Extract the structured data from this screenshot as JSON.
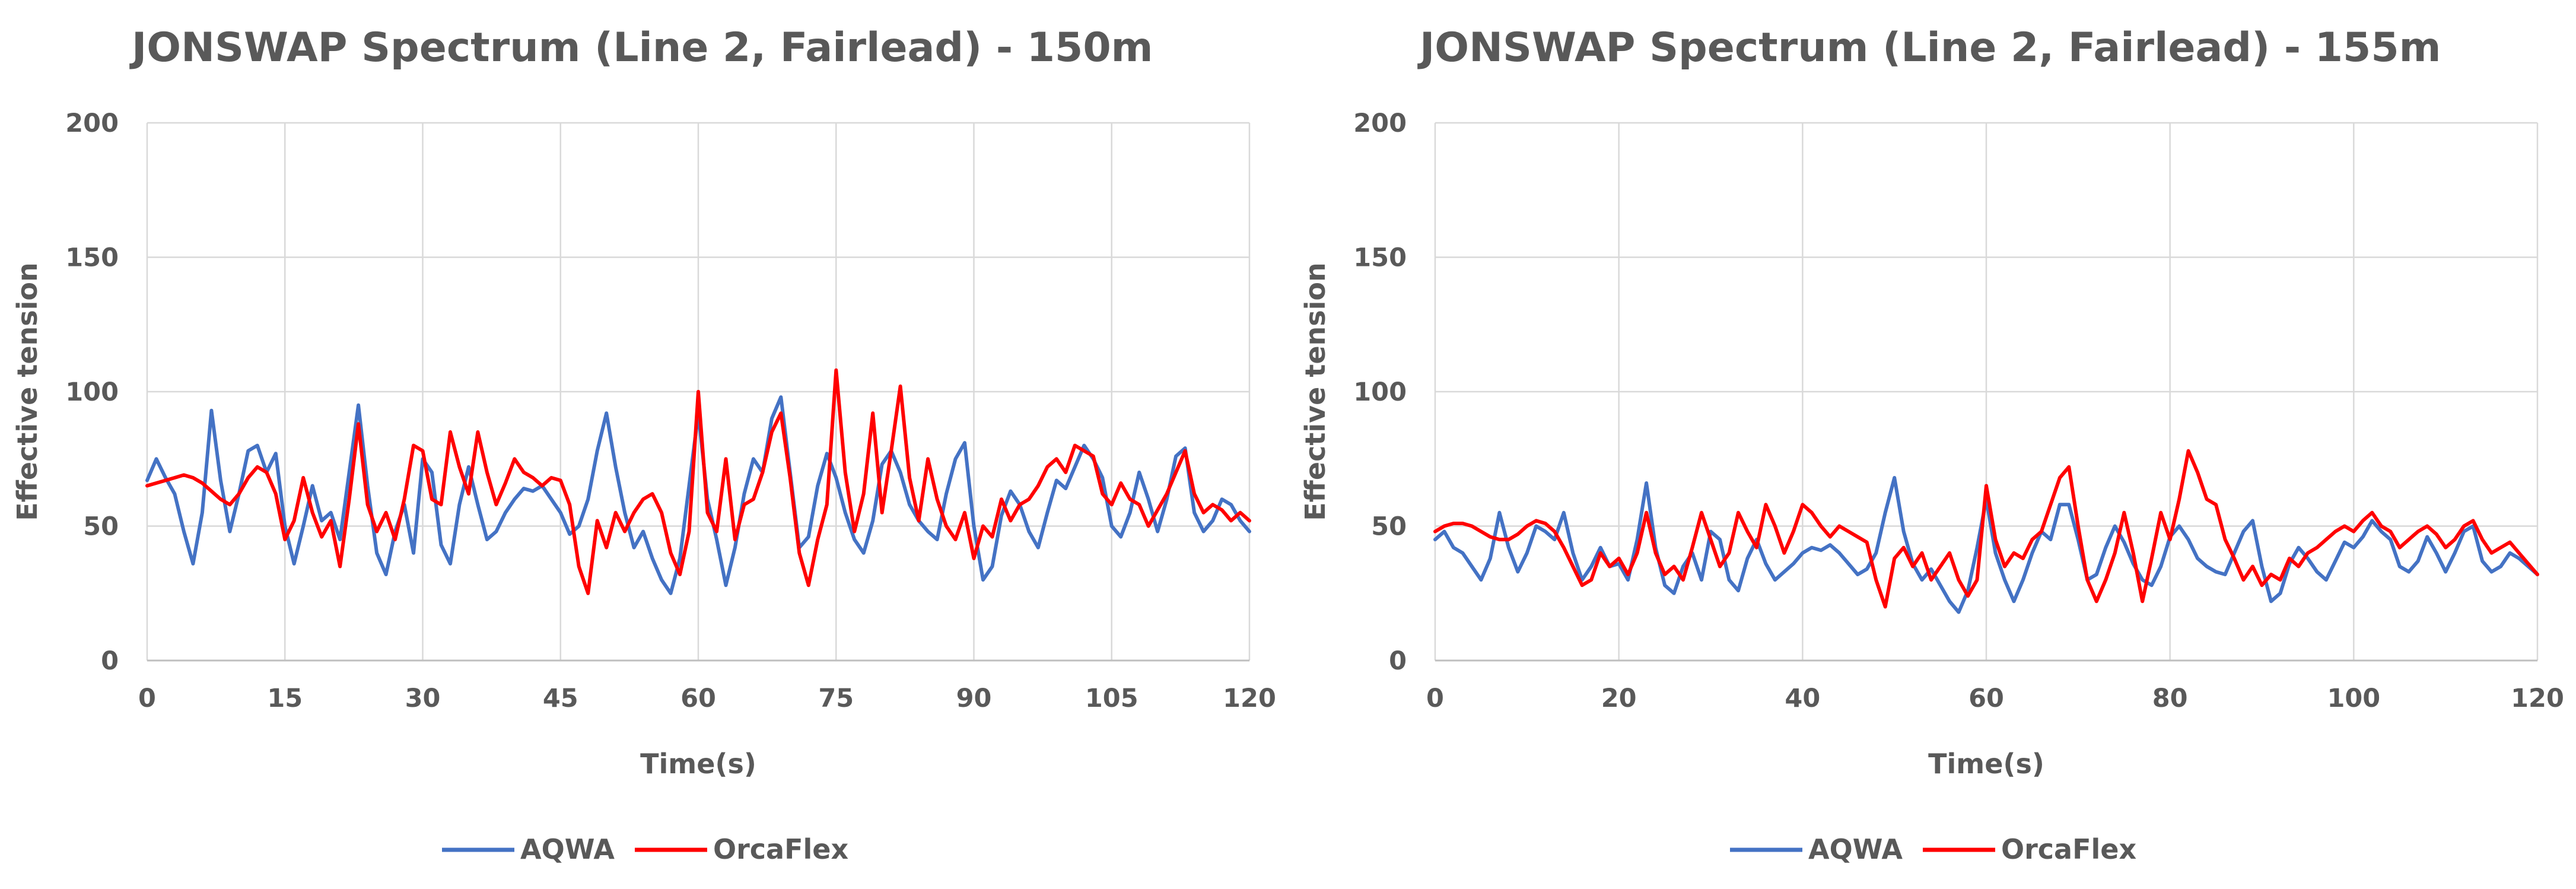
{
  "colors": {
    "aqwa": "#4472C4",
    "orcaflex": "#FF0000"
  },
  "chart_data": [
    {
      "type": "line",
      "title": "JONSWAP Spectrum (Line 2, Fairlead) - 150m",
      "xlabel": "Time(s)",
      "ylabel": "Effective tension",
      "xlim": [
        0,
        120
      ],
      "ylim": [
        0,
        200
      ],
      "xticks": [
        0,
        15,
        30,
        45,
        60,
        75,
        90,
        105,
        120
      ],
      "xtick_labels": [
        "0",
        "15",
        "30",
        "45",
        "60",
        "75",
        "90",
        "105",
        "120"
      ],
      "yticks": [
        0,
        50,
        100,
        150,
        200
      ],
      "ytick_labels": [
        "0",
        "50",
        "100",
        "150",
        "200"
      ],
      "grid": true,
      "legend_position": "bottom",
      "series": [
        {
          "name": "AQWA",
          "x": [
            0,
            1,
            2,
            3,
            4,
            5,
            6,
            7,
            8,
            9,
            10,
            11,
            12,
            13,
            14,
            15,
            16,
            17,
            18,
            19,
            20,
            21,
            22,
            23,
            24,
            25,
            26,
            27,
            28,
            29,
            30,
            31,
            32,
            33,
            34,
            35,
            36,
            37,
            38,
            39,
            40,
            41,
            42,
            43,
            44,
            45,
            46,
            47,
            48,
            49,
            50,
            51,
            52,
            53,
            54,
            55,
            56,
            57,
            58,
            59,
            60,
            61,
            62,
            63,
            64,
            65,
            66,
            67,
            68,
            69,
            70,
            71,
            72,
            73,
            74,
            75,
            76,
            77,
            78,
            79,
            80,
            81,
            82,
            83,
            84,
            85,
            86,
            87,
            88,
            89,
            90,
            91,
            92,
            93,
            94,
            95,
            96,
            97,
            98,
            99,
            100,
            101,
            102,
            103,
            104,
            105,
            106,
            107,
            108,
            109,
            110,
            111,
            112,
            113,
            114,
            115,
            116,
            117,
            118,
            119,
            120
          ],
          "values": [
            67,
            75,
            68,
            62,
            48,
            36,
            55,
            93,
            67,
            48,
            62,
            78,
            80,
            70,
            77,
            50,
            36,
            50,
            65,
            52,
            55,
            45,
            70,
            95,
            65,
            40,
            32,
            48,
            58,
            40,
            75,
            70,
            43,
            36,
            58,
            72,
            58,
            45,
            48,
            55,
            60,
            64,
            63,
            65,
            60,
            55,
            47,
            50,
            60,
            78,
            92,
            72,
            55,
            42,
            48,
            38,
            30,
            25,
            38,
            65,
            92,
            60,
            45,
            28,
            42,
            62,
            75,
            70,
            90,
            98,
            70,
            42,
            46,
            65,
            77,
            68,
            55,
            45,
            40,
            52,
            73,
            78,
            70,
            58,
            52,
            48,
            45,
            62,
            75,
            81,
            50,
            30,
            35,
            54,
            63,
            58,
            48,
            42,
            55,
            67,
            64,
            72,
            80,
            75,
            68,
            50,
            46,
            55,
            70,
            60,
            48,
            60,
            76,
            79,
            55,
            48,
            52,
            60,
            58,
            52,
            48
          ]
        },
        {
          "name": "OrcaFlex",
          "x": [
            0,
            1,
            2,
            3,
            4,
            5,
            6,
            7,
            8,
            9,
            10,
            11,
            12,
            13,
            14,
            15,
            16,
            17,
            18,
            19,
            20,
            21,
            22,
            23,
            24,
            25,
            26,
            27,
            28,
            29,
            30,
            31,
            32,
            33,
            34,
            35,
            36,
            37,
            38,
            39,
            40,
            41,
            42,
            43,
            44,
            45,
            46,
            47,
            48,
            49,
            50,
            51,
            52,
            53,
            54,
            55,
            56,
            57,
            58,
            59,
            60,
            61,
            62,
            63,
            64,
            65,
            66,
            67,
            68,
            69,
            70,
            71,
            72,
            73,
            74,
            75,
            76,
            77,
            78,
            79,
            80,
            81,
            82,
            83,
            84,
            85,
            86,
            87,
            88,
            89,
            90,
            91,
            92,
            93,
            94,
            95,
            96,
            97,
            98,
            99,
            100,
            101,
            102,
            103,
            104,
            105,
            106,
            107,
            108,
            109,
            110,
            111,
            112,
            113,
            114,
            115,
            116,
            117,
            118,
            119,
            120
          ],
          "values": [
            65,
            66,
            67,
            68,
            69,
            68,
            66,
            63,
            60,
            58,
            62,
            68,
            72,
            70,
            62,
            45,
            52,
            68,
            55,
            46,
            52,
            35,
            60,
            88,
            58,
            48,
            55,
            45,
            60,
            80,
            78,
            60,
            58,
            85,
            72,
            62,
            85,
            70,
            58,
            66,
            75,
            70,
            68,
            65,
            68,
            67,
            58,
            35,
            25,
            52,
            42,
            55,
            48,
            55,
            60,
            62,
            55,
            40,
            32,
            48,
            100,
            55,
            48,
            75,
            45,
            58,
            60,
            70,
            85,
            92,
            68,
            40,
            28,
            45,
            58,
            108,
            70,
            48,
            62,
            92,
            55,
            78,
            102,
            68,
            52,
            75,
            60,
            50,
            45,
            55,
            38,
            50,
            46,
            60,
            52,
            58,
            60,
            65,
            72,
            75,
            70,
            80,
            78,
            76,
            62,
            58,
            66,
            60,
            58,
            50,
            56,
            62,
            70,
            78,
            62,
            55,
            58,
            56,
            52,
            55,
            52
          ]
        }
      ]
    },
    {
      "type": "line",
      "title": "JONSWAP Spectrum (Line 2, Fairlead) - 155m",
      "xlabel": "Time(s)",
      "ylabel": "Effective tension",
      "xlim": [
        0,
        120
      ],
      "ylim": [
        0,
        200
      ],
      "xticks": [
        0,
        20,
        40,
        60,
        80,
        100,
        120
      ],
      "xtick_labels": [
        "0",
        "20",
        "40",
        "60",
        "80",
        "100",
        "120"
      ],
      "yticks": [
        0,
        50,
        100,
        150,
        200
      ],
      "ytick_labels": [
        "0",
        "50",
        "100",
        "150",
        "200"
      ],
      "grid": true,
      "legend_position": "bottom",
      "series": [
        {
          "name": "AQWA",
          "x": [
            0,
            1,
            2,
            3,
            4,
            5,
            6,
            7,
            8,
            9,
            10,
            11,
            12,
            13,
            14,
            15,
            16,
            17,
            18,
            19,
            20,
            21,
            22,
            23,
            24,
            25,
            26,
            27,
            28,
            29,
            30,
            31,
            32,
            33,
            34,
            35,
            36,
            37,
            38,
            39,
            40,
            41,
            42,
            43,
            44,
            45,
            46,
            47,
            48,
            49,
            50,
            51,
            52,
            53,
            54,
            55,
            56,
            57,
            58,
            59,
            60,
            61,
            62,
            63,
            64,
            65,
            66,
            67,
            68,
            69,
            70,
            71,
            72,
            73,
            74,
            75,
            76,
            77,
            78,
            79,
            80,
            81,
            82,
            83,
            84,
            85,
            86,
            87,
            88,
            89,
            90,
            91,
            92,
            93,
            94,
            95,
            96,
            97,
            98,
            99,
            100,
            101,
            102,
            103,
            104,
            105,
            106,
            107,
            108,
            109,
            110,
            111,
            112,
            113,
            114,
            115,
            116,
            117,
            118,
            119,
            120
          ],
          "values": [
            45,
            48,
            42,
            40,
            35,
            30,
            38,
            55,
            42,
            33,
            40,
            50,
            48,
            45,
            55,
            40,
            30,
            35,
            42,
            35,
            36,
            30,
            45,
            66,
            42,
            28,
            25,
            35,
            40,
            30,
            48,
            45,
            30,
            26,
            38,
            45,
            36,
            30,
            33,
            36,
            40,
            42,
            41,
            43,
            40,
            36,
            32,
            34,
            40,
            55,
            68,
            48,
            36,
            30,
            34,
            28,
            22,
            18,
            26,
            42,
            60,
            40,
            30,
            22,
            30,
            40,
            48,
            45,
            58,
            58,
            45,
            30,
            32,
            42,
            50,
            44,
            36,
            30,
            28,
            35,
            46,
            50,
            45,
            38,
            35,
            33,
            32,
            40,
            48,
            52,
            35,
            22,
            25,
            36,
            42,
            38,
            33,
            30,
            37,
            44,
            42,
            46,
            52,
            48,
            45,
            35,
            33,
            37,
            46,
            40,
            33,
            40,
            48,
            50,
            37,
            33,
            35,
            40,
            38,
            35,
            32
          ]
        },
        {
          "name": "OrcaFlex",
          "x": [
            0,
            1,
            2,
            3,
            4,
            5,
            6,
            7,
            8,
            9,
            10,
            11,
            12,
            13,
            14,
            15,
            16,
            17,
            18,
            19,
            20,
            21,
            22,
            23,
            24,
            25,
            26,
            27,
            28,
            29,
            30,
            31,
            32,
            33,
            34,
            35,
            36,
            37,
            38,
            39,
            40,
            41,
            42,
            43,
            44,
            45,
            46,
            47,
            48,
            49,
            50,
            51,
            52,
            53,
            54,
            55,
            56,
            57,
            58,
            59,
            60,
            61,
            62,
            63,
            64,
            65,
            66,
            67,
            68,
            69,
            70,
            71,
            72,
            73,
            74,
            75,
            76,
            77,
            78,
            79,
            80,
            81,
            82,
            83,
            84,
            85,
            86,
            87,
            88,
            89,
            90,
            91,
            92,
            93,
            94,
            95,
            96,
            97,
            98,
            99,
            100,
            101,
            102,
            103,
            104,
            105,
            106,
            107,
            108,
            109,
            110,
            111,
            112,
            113,
            114,
            115,
            116,
            117,
            118,
            119,
            120
          ],
          "values": [
            48,
            50,
            51,
            51,
            50,
            48,
            46,
            45,
            45,
            47,
            50,
            52,
            51,
            48,
            42,
            35,
            28,
            30,
            40,
            35,
            38,
            32,
            40,
            55,
            40,
            32,
            35,
            30,
            42,
            55,
            45,
            35,
            40,
            55,
            48,
            42,
            58,
            50,
            40,
            48,
            58,
            55,
            50,
            46,
            50,
            48,
            46,
            44,
            30,
            20,
            38,
            42,
            35,
            40,
            30,
            35,
            40,
            30,
            24,
            30,
            65,
            45,
            35,
            40,
            38,
            45,
            48,
            58,
            68,
            72,
            50,
            30,
            22,
            30,
            40,
            55,
            40,
            22,
            38,
            55,
            45,
            60,
            78,
            70,
            60,
            58,
            45,
            38,
            30,
            35,
            28,
            32,
            30,
            38,
            35,
            40,
            42,
            45,
            48,
            50,
            48,
            52,
            55,
            50,
            48,
            42,
            45,
            48,
            50,
            47,
            42,
            45,
            50,
            52,
            45,
            40,
            42,
            44,
            40,
            36,
            32
          ]
        }
      ]
    }
  ]
}
